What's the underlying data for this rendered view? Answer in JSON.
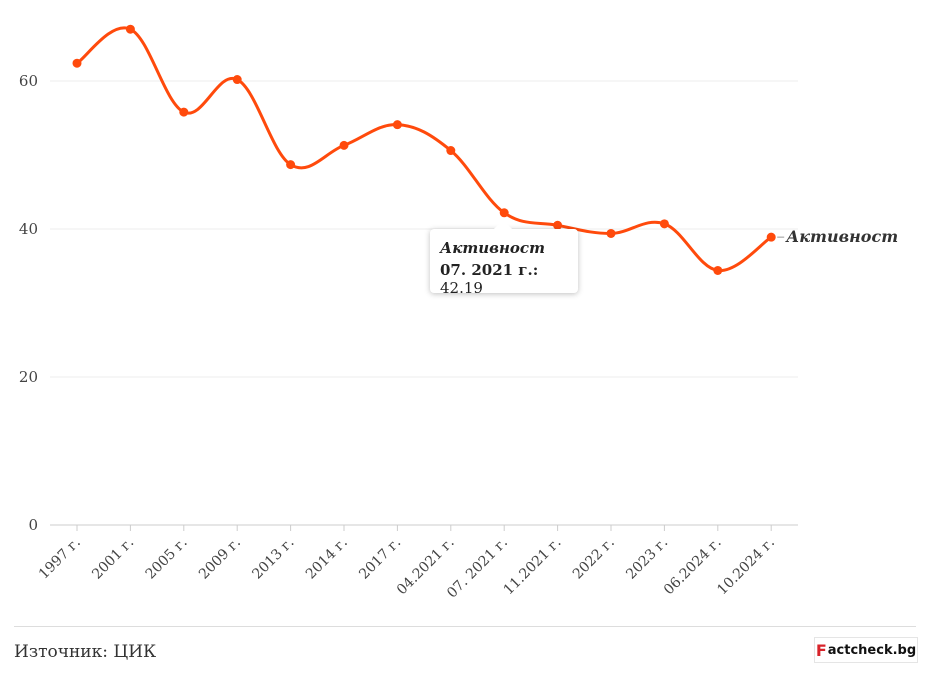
{
  "chart_data": {
    "type": "line",
    "categories": [
      "1997 г.",
      "2001 г.",
      "2005 г.",
      "2009 г.",
      "2013 г.",
      "2014 г.",
      "2017 г.",
      "04.2021 г.",
      "07. 2021 г.",
      "11.2021 г.",
      "2022 г.",
      "2023 г.",
      "06.2024 г.",
      "10.2024 г."
    ],
    "series": [
      {
        "name": "Активност",
        "values": [
          62.4,
          67.0,
          55.8,
          60.2,
          48.7,
          51.3,
          54.1,
          50.6,
          42.19,
          40.5,
          39.4,
          40.7,
          34.4,
          38.9
        ]
      }
    ],
    "ylim": [
      0,
      70
    ],
    "yticks": [
      0,
      20,
      40,
      60
    ],
    "grid": true,
    "color": "#ff4a0c",
    "tooltip": {
      "series": "Активност",
      "category": "07. 2021 г.:",
      "value": "42.19"
    }
  },
  "footer": {
    "source": "Източник: ЦИК",
    "logo_text": "actcheck.bg",
    "logo_mark": "F"
  }
}
